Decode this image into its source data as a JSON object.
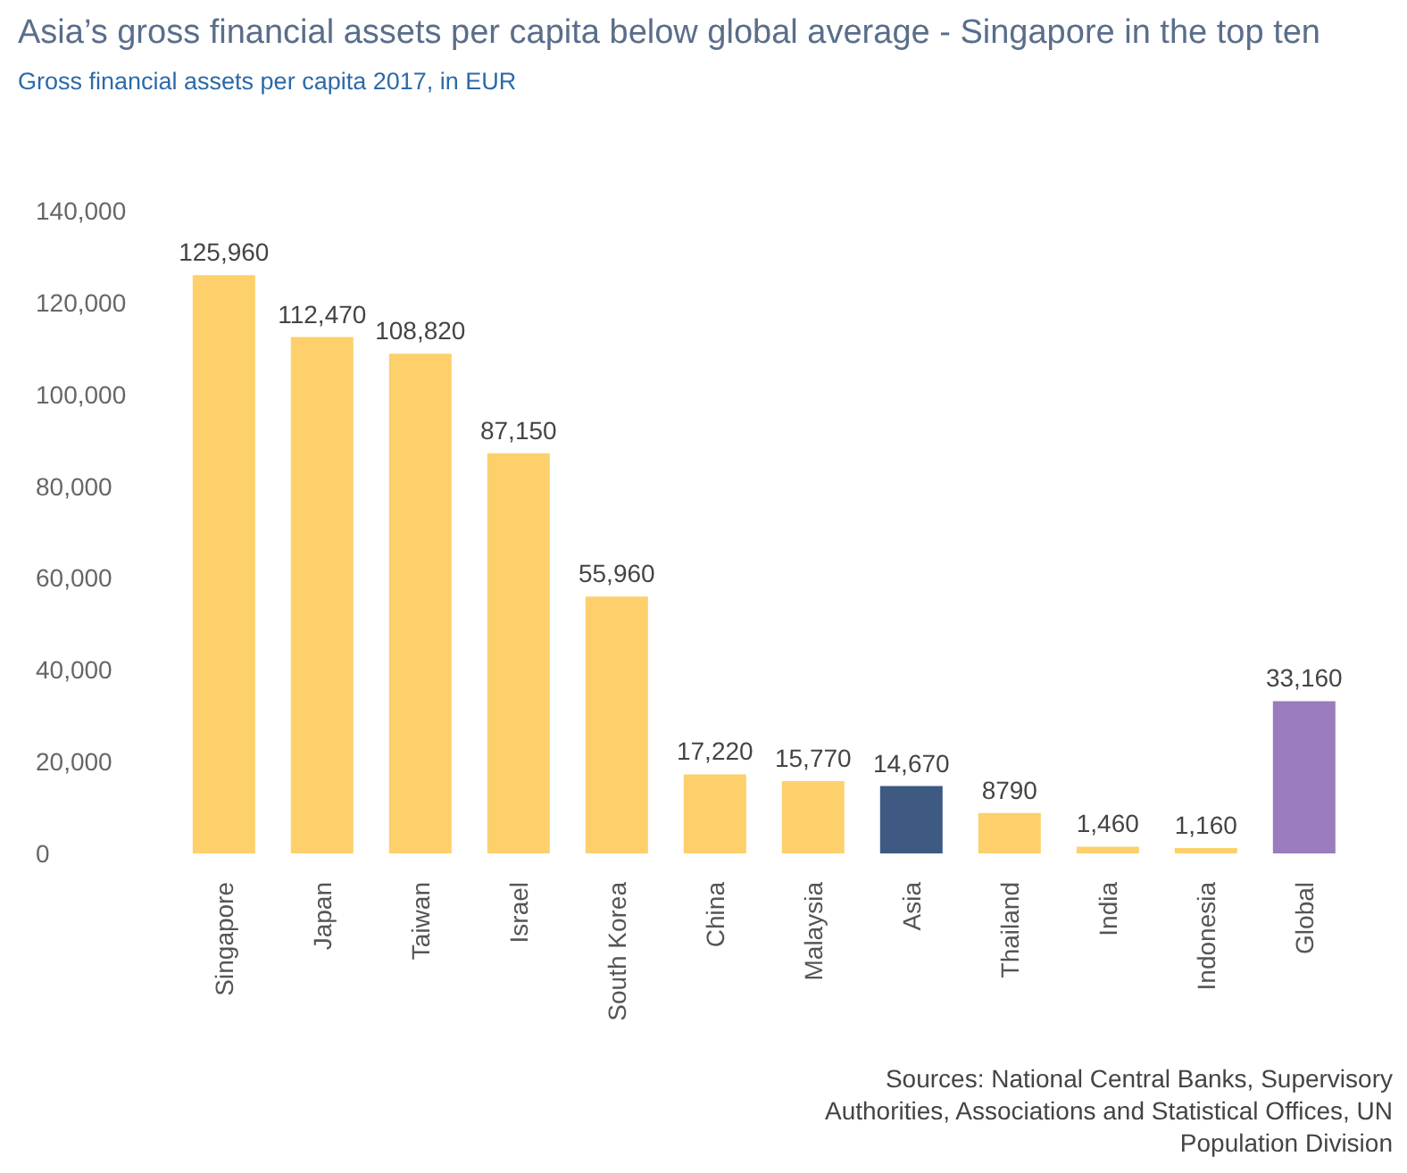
{
  "chart_data": {
    "type": "bar",
    "title": "Asia’s gross financial assets per capita below global average - Singapore in the top ten",
    "subtitle": "Gross financial assets per capita 2017, in EUR",
    "categories": [
      "Singapore",
      "Japan",
      "Taiwan",
      "Israel",
      "South Korea",
      "China",
      "Malaysia",
      "Asia",
      "Thailand",
      "India",
      "Indonesia",
      "Global"
    ],
    "values": [
      125960,
      112470,
      108820,
      87150,
      55960,
      17220,
      15770,
      14670,
      8790,
      1460,
      1160,
      33160
    ],
    "value_labels": [
      "125,960",
      "112,470",
      "108,820",
      "87,150",
      "55,960",
      "17,220",
      "15,770",
      "14,670",
      "8790",
      "1,460",
      "1,160",
      "33,160"
    ],
    "colors": [
      "#fdd06c",
      "#fdd06c",
      "#fdd06c",
      "#fdd06c",
      "#fdd06c",
      "#fdd06c",
      "#fdd06c",
      "#3e5a82",
      "#fdd06c",
      "#fdd06c",
      "#fdd06c",
      "#9a7bbb"
    ],
    "ylim": [
      0,
      140000
    ],
    "yticks": [
      {
        "value": 0,
        "label": "0"
      },
      {
        "value": 20000,
        "label": "20,000"
      },
      {
        "value": 40000,
        "label": "40,000"
      },
      {
        "value": 60000,
        "label": "60,000"
      },
      {
        "value": 80000,
        "label": "80,000"
      },
      {
        "value": 100000,
        "label": "100,000"
      },
      {
        "value": 120000,
        "label": "120,000"
      },
      {
        "value": 140000,
        "label": "140,000"
      }
    ],
    "grid": false,
    "legend": false,
    "annotations": [
      "Sources: National Central Banks, Supervisory Authorities, Associations and Statistical Offices, UN Population Division"
    ]
  }
}
